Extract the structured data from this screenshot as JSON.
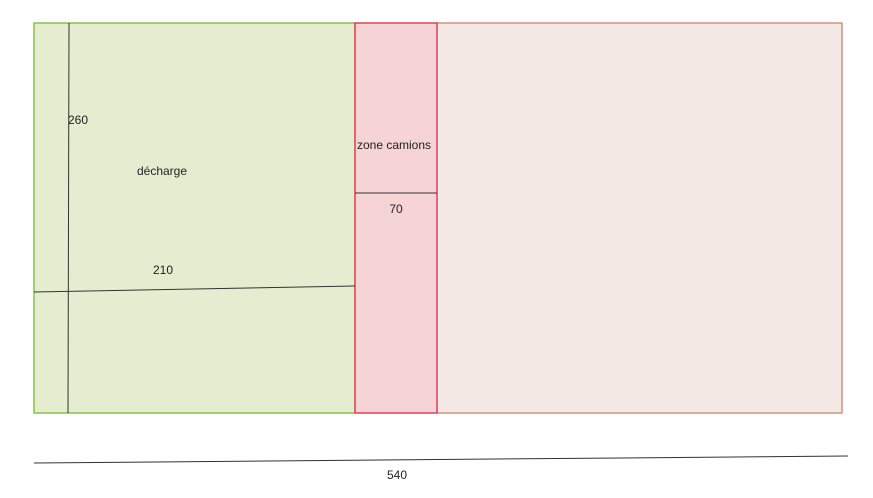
{
  "zones": [
    {
      "label": "décharge",
      "width_label": "210",
      "height_label": "260"
    },
    {
      "label": "zone camions",
      "width_label": "70"
    }
  ],
  "total_width_label": "540"
}
